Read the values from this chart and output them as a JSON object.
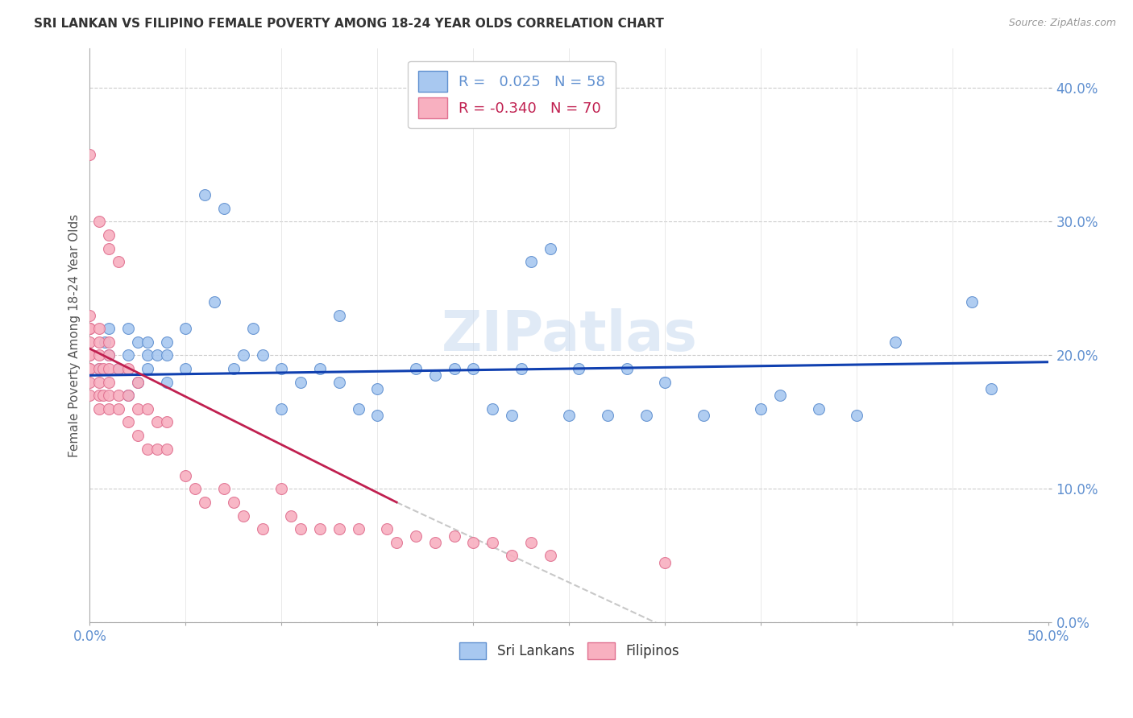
{
  "title": "SRI LANKAN VS FILIPINO FEMALE POVERTY AMONG 18-24 YEAR OLDS CORRELATION CHART",
  "source": "Source: ZipAtlas.com",
  "ylabel": "Female Poverty Among 18-24 Year Olds",
  "xlim": [
    0.0,
    0.5
  ],
  "ylim": [
    0.0,
    0.43
  ],
  "ytick_vals": [
    0.0,
    0.1,
    0.2,
    0.3,
    0.4
  ],
  "watermark": "ZIPatlas",
  "sri_lankan_color": "#a8c8f0",
  "filipino_color": "#f8b0c0",
  "sri_lankan_edge": "#6090d0",
  "filipino_edge": "#e07090",
  "trend_blue": "#1040b0",
  "trend_pink": "#c02050",
  "trend_gray": "#c8c8c8",
  "legend_R_sri": "0.025",
  "legend_N_sri": "58",
  "legend_R_fil": "-0.340",
  "legend_N_fil": "70",
  "sri_lankan_color_leg": "#a8c8f0",
  "filipino_color_leg": "#f8b0c0",
  "tick_color": "#6090d0",
  "marker_size": 100,
  "sri_lankan_x": [
    0.005,
    0.008,
    0.01,
    0.01,
    0.015,
    0.02,
    0.02,
    0.02,
    0.025,
    0.025,
    0.03,
    0.03,
    0.03,
    0.035,
    0.04,
    0.04,
    0.04,
    0.05,
    0.05,
    0.06,
    0.065,
    0.07,
    0.075,
    0.08,
    0.085,
    0.09,
    0.1,
    0.1,
    0.11,
    0.12,
    0.13,
    0.13,
    0.14,
    0.15,
    0.15,
    0.17,
    0.18,
    0.19,
    0.2,
    0.21,
    0.22,
    0.225,
    0.23,
    0.24,
    0.25,
    0.255,
    0.27,
    0.28,
    0.29,
    0.3,
    0.32,
    0.35,
    0.36,
    0.38,
    0.4,
    0.42,
    0.46,
    0.47
  ],
  "sri_lankan_y": [
    0.19,
    0.21,
    0.2,
    0.22,
    0.19,
    0.17,
    0.2,
    0.22,
    0.18,
    0.21,
    0.19,
    0.2,
    0.21,
    0.2,
    0.18,
    0.2,
    0.21,
    0.19,
    0.22,
    0.32,
    0.24,
    0.31,
    0.19,
    0.2,
    0.22,
    0.2,
    0.16,
    0.19,
    0.18,
    0.19,
    0.18,
    0.23,
    0.16,
    0.155,
    0.175,
    0.19,
    0.185,
    0.19,
    0.19,
    0.16,
    0.155,
    0.19,
    0.27,
    0.28,
    0.155,
    0.19,
    0.155,
    0.19,
    0.155,
    0.18,
    0.155,
    0.16,
    0.17,
    0.16,
    0.155,
    0.21,
    0.24,
    0.175
  ],
  "filipino_x": [
    0.0,
    0.0,
    0.0,
    0.0,
    0.0,
    0.0,
    0.0,
    0.0,
    0.0,
    0.0,
    0.0,
    0.0,
    0.005,
    0.005,
    0.005,
    0.005,
    0.005,
    0.005,
    0.005,
    0.005,
    0.007,
    0.007,
    0.01,
    0.01,
    0.01,
    0.01,
    0.01,
    0.01,
    0.01,
    0.01,
    0.015,
    0.015,
    0.015,
    0.015,
    0.02,
    0.02,
    0.02,
    0.025,
    0.025,
    0.025,
    0.03,
    0.03,
    0.035,
    0.035,
    0.04,
    0.04,
    0.05,
    0.055,
    0.06,
    0.07,
    0.075,
    0.08,
    0.09,
    0.1,
    0.105,
    0.11,
    0.12,
    0.13,
    0.14,
    0.155,
    0.16,
    0.17,
    0.18,
    0.19,
    0.2,
    0.21,
    0.22,
    0.23,
    0.24,
    0.3
  ],
  "filipino_y": [
    0.17,
    0.18,
    0.19,
    0.2,
    0.21,
    0.22,
    0.22,
    0.23,
    0.22,
    0.2,
    0.19,
    0.35,
    0.16,
    0.17,
    0.18,
    0.19,
    0.2,
    0.21,
    0.22,
    0.3,
    0.17,
    0.19,
    0.16,
    0.17,
    0.18,
    0.19,
    0.2,
    0.21,
    0.28,
    0.29,
    0.16,
    0.17,
    0.19,
    0.27,
    0.15,
    0.17,
    0.19,
    0.14,
    0.16,
    0.18,
    0.13,
    0.16,
    0.13,
    0.15,
    0.13,
    0.15,
    0.11,
    0.1,
    0.09,
    0.1,
    0.09,
    0.08,
    0.07,
    0.1,
    0.08,
    0.07,
    0.07,
    0.07,
    0.07,
    0.07,
    0.06,
    0.065,
    0.06,
    0.065,
    0.06,
    0.06,
    0.05,
    0.06,
    0.05,
    0.045
  ]
}
